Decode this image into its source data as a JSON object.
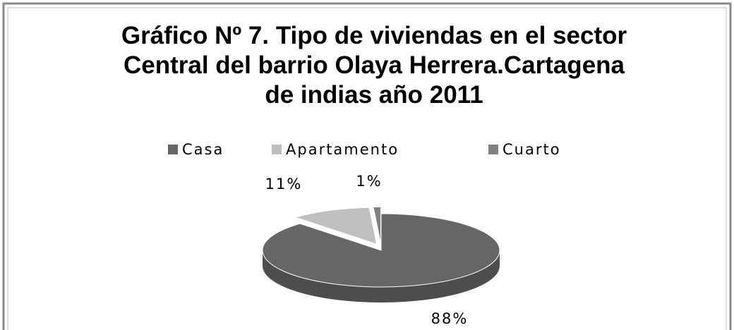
{
  "chart_data": {
    "type": "pie3d",
    "title": "Gráfico Nº 7. Tipo de viviendas en el sector Central del barrio Olaya Herrera.Cartagena de indias año 2011",
    "categories": [
      "Casa",
      "Apartamento",
      "Cuarto"
    ],
    "values": [
      88,
      11,
      1
    ],
    "value_labels": [
      "88%",
      "11%",
      "1%"
    ],
    "colors": [
      "#666666",
      "#bfbfbf",
      "#808080"
    ],
    "legend": "top"
  }
}
